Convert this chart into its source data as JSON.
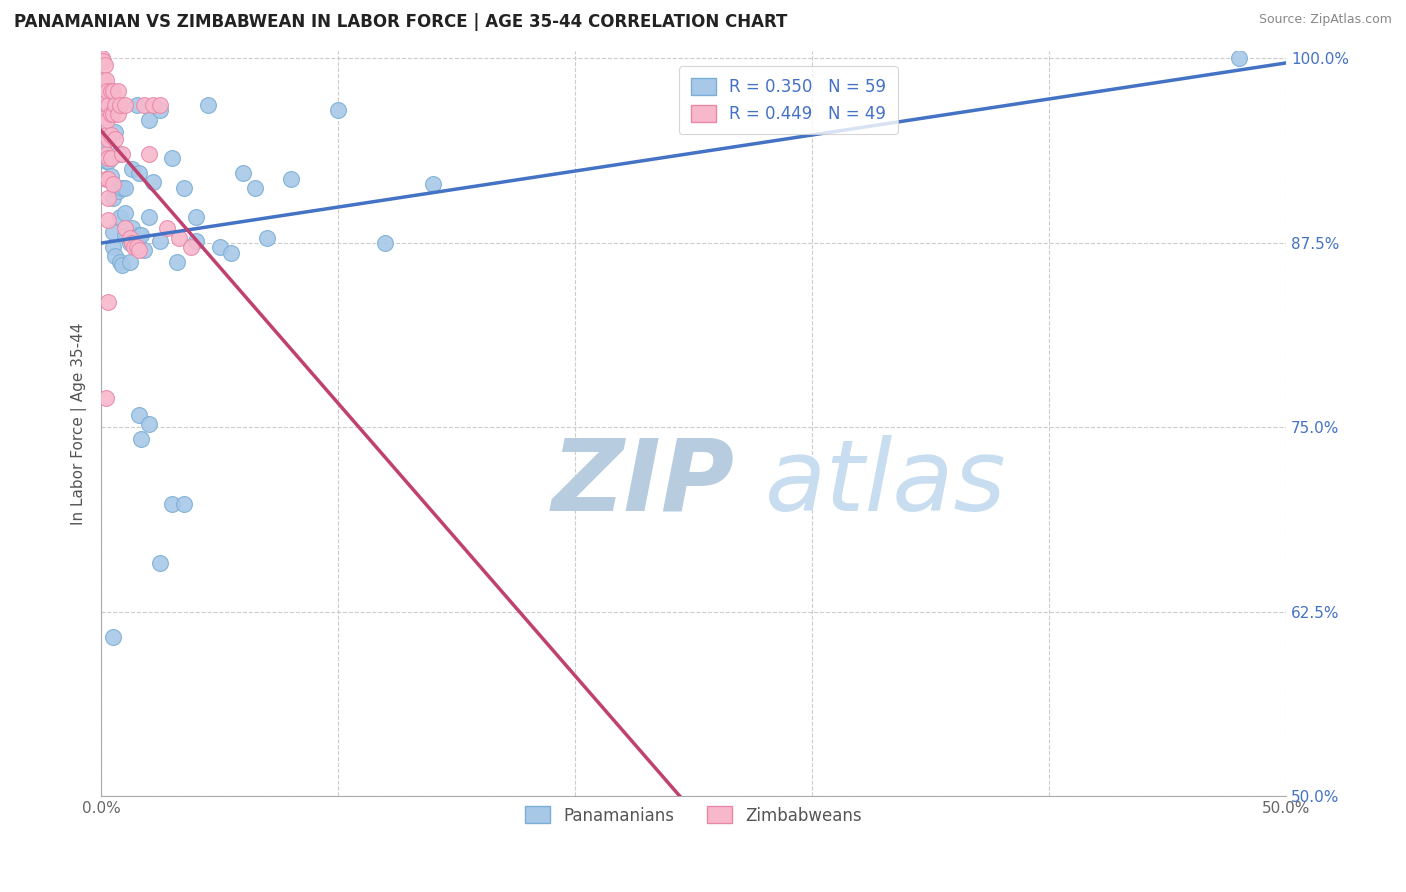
{
  "title": "PANAMANIAN VS ZIMBABWEAN IN LABOR FORCE | AGE 35-44 CORRELATION CHART",
  "source": "Source: ZipAtlas.com",
  "ylabel": "In Labor Force | Age 35-44",
  "xlim": [
    0.0,
    0.5
  ],
  "ylim": [
    0.5,
    1.005
  ],
  "ytick_vals": [
    0.5,
    0.625,
    0.75,
    0.875,
    1.0
  ],
  "ytick_labels": [
    "50.0%",
    "62.5%",
    "75.0%",
    "87.5%",
    "100.0%"
  ],
  "xtick_vals": [
    0.0,
    0.1,
    0.2,
    0.3,
    0.4,
    0.5
  ],
  "xtick_labels": [
    "0.0%",
    "",
    "",
    "",
    "",
    "50.0%"
  ],
  "legend_entries": [
    "R = 0.350   N = 59",
    "R = 0.449   N = 49"
  ],
  "legend_labels_bottom": [
    "Panamanians",
    "Zimbabweans"
  ],
  "blue_scatter_x": [
    0.001,
    0.002,
    0.002,
    0.003,
    0.003,
    0.004,
    0.005,
    0.005,
    0.005,
    0.006,
    0.006,
    0.007,
    0.007,
    0.008,
    0.008,
    0.009,
    0.009,
    0.01,
    0.01,
    0.01,
    0.012,
    0.012,
    0.013,
    0.013,
    0.014,
    0.015,
    0.015,
    0.016,
    0.016,
    0.017,
    0.018,
    0.02,
    0.02,
    0.022,
    0.025,
    0.025,
    0.03,
    0.032,
    0.035,
    0.04,
    0.04,
    0.045,
    0.05,
    0.055,
    0.06,
    0.065,
    0.07,
    0.08,
    0.1,
    0.12,
    0.14,
    0.016,
    0.017,
    0.02,
    0.03,
    0.035,
    0.025,
    0.005,
    0.48
  ],
  "blue_scatter_y": [
    0.94,
    0.96,
    0.93,
    0.97,
    0.93,
    0.92,
    0.905,
    0.882,
    0.872,
    0.95,
    0.866,
    0.935,
    0.91,
    0.892,
    0.862,
    0.912,
    0.86,
    0.912,
    0.895,
    0.88,
    0.875,
    0.862,
    0.925,
    0.885,
    0.875,
    0.968,
    0.875,
    0.922,
    0.88,
    0.88,
    0.87,
    0.958,
    0.892,
    0.916,
    0.965,
    0.876,
    0.932,
    0.862,
    0.912,
    0.892,
    0.876,
    0.968,
    0.872,
    0.868,
    0.922,
    0.912,
    0.878,
    0.918,
    0.965,
    0.875,
    0.915,
    0.758,
    0.742,
    0.752,
    0.698,
    0.698,
    0.658,
    0.608,
    1.0
  ],
  "pink_scatter_x": [
    0.0005,
    0.001,
    0.001,
    0.001,
    0.0015,
    0.0015,
    0.002,
    0.002,
    0.002,
    0.002,
    0.002,
    0.002,
    0.0025,
    0.0025,
    0.003,
    0.003,
    0.003,
    0.003,
    0.003,
    0.003,
    0.004,
    0.004,
    0.004,
    0.004,
    0.005,
    0.005,
    0.005,
    0.006,
    0.006,
    0.007,
    0.007,
    0.008,
    0.009,
    0.01,
    0.01,
    0.012,
    0.013,
    0.014,
    0.015,
    0.016,
    0.018,
    0.02,
    0.022,
    0.025,
    0.028,
    0.033,
    0.038,
    0.003,
    0.002
  ],
  "pink_scatter_y": [
    1.0,
    0.998,
    0.985,
    0.975,
    0.995,
    0.965,
    0.985,
    0.97,
    0.96,
    0.948,
    0.935,
    0.918,
    0.978,
    0.958,
    0.968,
    0.945,
    0.932,
    0.918,
    0.905,
    0.89,
    0.978,
    0.962,
    0.948,
    0.932,
    0.978,
    0.962,
    0.915,
    0.968,
    0.945,
    0.978,
    0.962,
    0.968,
    0.935,
    0.968,
    0.885,
    0.878,
    0.875,
    0.872,
    0.872,
    0.87,
    0.968,
    0.935,
    0.968,
    0.968,
    0.885,
    0.878,
    0.872,
    0.835,
    0.77
  ],
  "blue_dot_color": "#a8c8e8",
  "blue_edge_color": "#7aaed6",
  "pink_dot_color": "#f8b8cc",
  "pink_edge_color": "#e888a8",
  "blue_line_color": "#4472c4",
  "pink_line_color": "#c0406e",
  "legend_blue_color": "#a8c8e8",
  "legend_pink_color": "#f8b8cc",
  "watermark_zip": "ZIP",
  "watermark_atlas": "atlas",
  "watermark_color": "#c8d8ec",
  "title_fontsize": 12,
  "tick_fontsize": 11,
  "label_fontsize": 11
}
